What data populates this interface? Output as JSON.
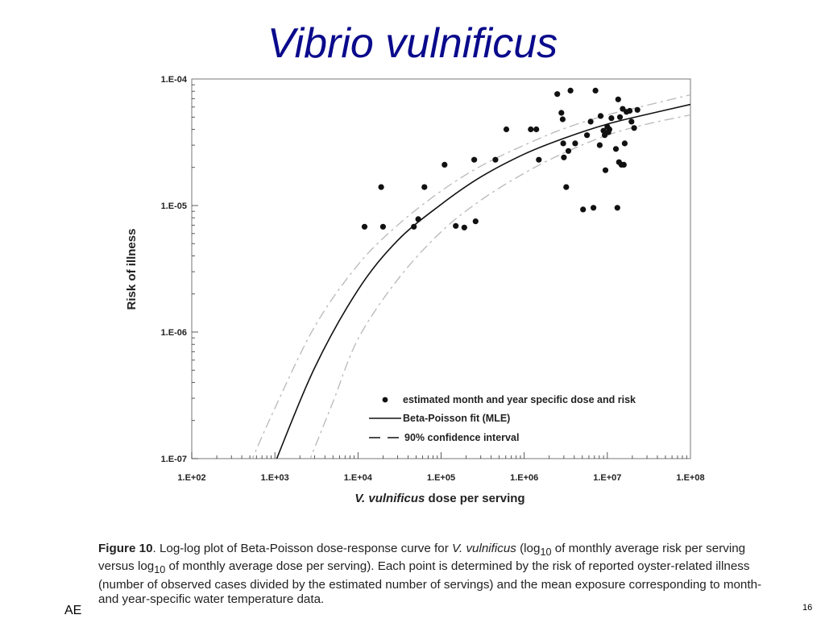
{
  "slide": {
    "title": "Vibrio vulnificus",
    "footer_left": "AE",
    "page_number": "16"
  },
  "caption": {
    "label": "Figure 10",
    "text_1": ". Log-log plot of Beta-Poisson dose-response curve for ",
    "species": "V. vulnificus",
    "text_2": " (log",
    "sub_1": "10",
    "text_3": " of monthly average risk per serving versus log",
    "sub_2": "10",
    "text_4": " of monthly average dose per serving). Each point is determined by the risk of reported oyster-related illness (number of observed cases divided by the estimated number of servings) and the mean exposure corresponding to month- and year-specific water temperature data."
  },
  "chart_data": {
    "type": "scatter",
    "xlabel_italic": "V. vulnificus",
    "xlabel_rest": " dose per serving",
    "ylabel": "Risk of illness",
    "xscale": "log",
    "yscale": "log",
    "xlim": [
      100,
      100000000
    ],
    "ylim": [
      1e-07,
      0.0001
    ],
    "x_ticks": [
      {
        "value": 100,
        "label": "1.E+02"
      },
      {
        "value": 1000,
        "label": "1.E+03"
      },
      {
        "value": 10000,
        "label": "1.E+04"
      },
      {
        "value": 100000,
        "label": "1.E+05"
      },
      {
        "value": 1000000,
        "label": "1.E+06"
      },
      {
        "value": 10000000,
        "label": "1.E+07"
      },
      {
        "value": 100000000,
        "label": "1.E+08"
      }
    ],
    "y_ticks": [
      {
        "value": 1e-07,
        "label": "1.E-07"
      },
      {
        "value": 1e-06,
        "label": "1.E-06"
      },
      {
        "value": 1e-05,
        "label": "1.E-05"
      },
      {
        "value": 0.0001,
        "label": "1.E-04"
      }
    ],
    "grid": false,
    "legend_position": "bottom-right",
    "legend": [
      {
        "label": "estimated month and year specific dose and risk",
        "marker": "dot"
      },
      {
        "label": "Beta-Poisson fit (MLE)",
        "marker": "solid-line"
      },
      {
        "label": "90% confidence interval",
        "marker": "dashed-line"
      }
    ],
    "points": [
      [
        12000,
        6.8e-06
      ],
      [
        19000,
        1.4e-05
      ],
      [
        20000,
        6.8e-06
      ],
      [
        47000,
        6.8e-06
      ],
      [
        53000,
        7.8e-06
      ],
      [
        63000,
        1.4e-05
      ],
      [
        110000,
        2.1e-05
      ],
      [
        150000,
        6.9e-06
      ],
      [
        190000,
        6.7e-06
      ],
      [
        250000,
        2.3e-05
      ],
      [
        260000,
        7.5e-06
      ],
      [
        450000,
        2.3e-05
      ],
      [
        610000,
        4e-05
      ],
      [
        1200000,
        4e-05
      ],
      [
        1400000,
        4e-05
      ],
      [
        1500000,
        2.3e-05
      ],
      [
        2500000,
        7.6e-05
      ],
      [
        2800000,
        5.4e-05
      ],
      [
        2900000,
        4.8e-05
      ],
      [
        2950000,
        3.1e-05
      ],
      [
        3000000,
        2.4e-05
      ],
      [
        3200000,
        1.4e-05
      ],
      [
        3400000,
        2.7e-05
      ],
      [
        3600000,
        8.1e-05
      ],
      [
        4100000,
        3.1e-05
      ],
      [
        5100000,
        9.3e-06
      ],
      [
        5700000,
        3.6e-05
      ],
      [
        6300000,
        4.6e-05
      ],
      [
        6800000,
        9.6e-06
      ],
      [
        7200000,
        8.1e-05
      ],
      [
        8100000,
        3e-05
      ],
      [
        8300000,
        5.1e-05
      ],
      [
        9000000,
        3.9e-05
      ],
      [
        9300000,
        3.6e-05
      ],
      [
        9500000,
        1.9e-05
      ],
      [
        10000000,
        4.2e-05
      ],
      [
        10300000,
        3.8e-05
      ],
      [
        10600000,
        4e-05
      ],
      [
        11200000,
        4.9e-05
      ],
      [
        12700000,
        2.8e-05
      ],
      [
        13200000,
        9.6e-06
      ],
      [
        13500000,
        6.9e-05
      ],
      [
        13800000,
        2.2e-05
      ],
      [
        14200000,
        5e-05
      ],
      [
        14800000,
        2.1e-05
      ],
      [
        15300000,
        5.8e-05
      ],
      [
        15800000,
        2.1e-05
      ],
      [
        16200000,
        3.1e-05
      ],
      [
        17000000,
        5.5e-05
      ],
      [
        18600000,
        5.6e-05
      ],
      [
        19500000,
        4.6e-05
      ],
      [
        21000000,
        4.1e-05
      ],
      [
        23000000,
        5.7e-05
      ]
    ],
    "fit_mle": [
      [
        1000,
        9.2e-08
      ],
      [
        3000,
        5.2e-07
      ],
      [
        10000,
        2.15e-06
      ],
      [
        30000,
        5.3e-06
      ],
      [
        100000,
        1.02e-05
      ],
      [
        300000,
        1.68e-05
      ],
      [
        1000000,
        2.55e-05
      ],
      [
        3000000,
        3.4e-05
      ],
      [
        10000000,
        4.4e-05
      ],
      [
        30000000,
        5.25e-05
      ],
      [
        100000000,
        6.3e-05
      ]
    ],
    "ci_upper": [
      [
        500,
        9e-08
      ],
      [
        1000,
        2.5e-07
      ],
      [
        3000,
        1.1e-06
      ],
      [
        10000,
        3.4e-06
      ],
      [
        30000,
        7e-06
      ],
      [
        100000,
        1.3e-05
      ],
      [
        300000,
        2.05e-05
      ],
      [
        1000000,
        3e-05
      ],
      [
        3000000,
        4.05e-05
      ],
      [
        10000000,
        5.2e-05
      ],
      [
        30000000,
        6.2e-05
      ],
      [
        100000000,
        7.5e-05
      ]
    ],
    "ci_lower": [
      [
        2500,
        9e-08
      ],
      [
        5000,
        2.8e-07
      ],
      [
        10000,
        8.8e-07
      ],
      [
        30000,
        2.6e-06
      ],
      [
        100000,
        6.2e-06
      ],
      [
        300000,
        1.1e-05
      ],
      [
        1000000,
        1.8e-05
      ],
      [
        3000000,
        2.6e-05
      ],
      [
        10000000,
        3.6e-05
      ],
      [
        30000000,
        4.4e-05
      ],
      [
        100000000,
        5.2e-05
      ]
    ]
  }
}
